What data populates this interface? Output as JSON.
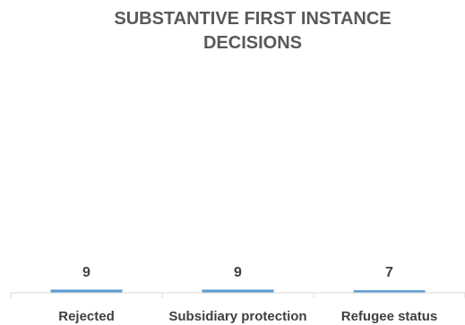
{
  "chart_data": {
    "type": "bar",
    "title_lines": [
      "SUBSTANTIVE FIRST INSTANCE",
      "DECISIONS"
    ],
    "categories": [
      "Rejected",
      "Subsidiary protection",
      "Refugee status"
    ],
    "values": [
      9,
      9,
      7
    ],
    "data_labels": [
      "9",
      "9",
      "7"
    ],
    "xlabel": "",
    "ylabel": "",
    "grid": false,
    "legend": "none",
    "colors": {
      "bar": "#5b9bd5",
      "axis": "#d9d9d9",
      "title": "#595959",
      "label": "#404040"
    }
  }
}
